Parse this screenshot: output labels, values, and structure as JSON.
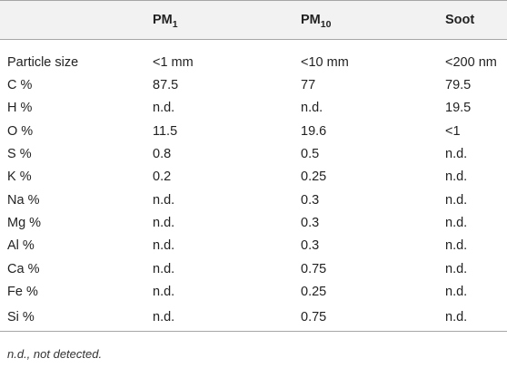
{
  "table": {
    "headers": [
      {
        "main": "",
        "sub": ""
      },
      {
        "main": "PM",
        "sub": "1"
      },
      {
        "main": "PM",
        "sub": "10"
      },
      {
        "main": "Soot",
        "sub": ""
      }
    ],
    "rows": [
      [
        "Particle size",
        "<1 mm",
        "<10 mm",
        "<200 nm"
      ],
      [
        "C %",
        "87.5",
        "77",
        "79.5"
      ],
      [
        "H %",
        "n.d.",
        "n.d.",
        "19.5"
      ],
      [
        "O %",
        "11.5",
        "19.6",
        "<1"
      ],
      [
        "S %",
        "0.8",
        "0.5",
        "n.d."
      ],
      [
        "K %",
        "0.2",
        "0.25",
        "n.d."
      ],
      [
        "Na %",
        "n.d.",
        "0.3",
        "n.d."
      ],
      [
        "Mg %",
        "n.d.",
        "0.3",
        "n.d."
      ],
      [
        "Al %",
        "n.d.",
        "0.3",
        "n.d."
      ],
      [
        "Ca %",
        "n.d.",
        "0.75",
        "n.d."
      ],
      [
        "Fe %",
        "n.d.",
        "0.25",
        "n.d."
      ],
      [
        "Si %",
        "n.d.",
        "0.75",
        "n.d."
      ]
    ]
  },
  "footnote": "n.d., not detected."
}
